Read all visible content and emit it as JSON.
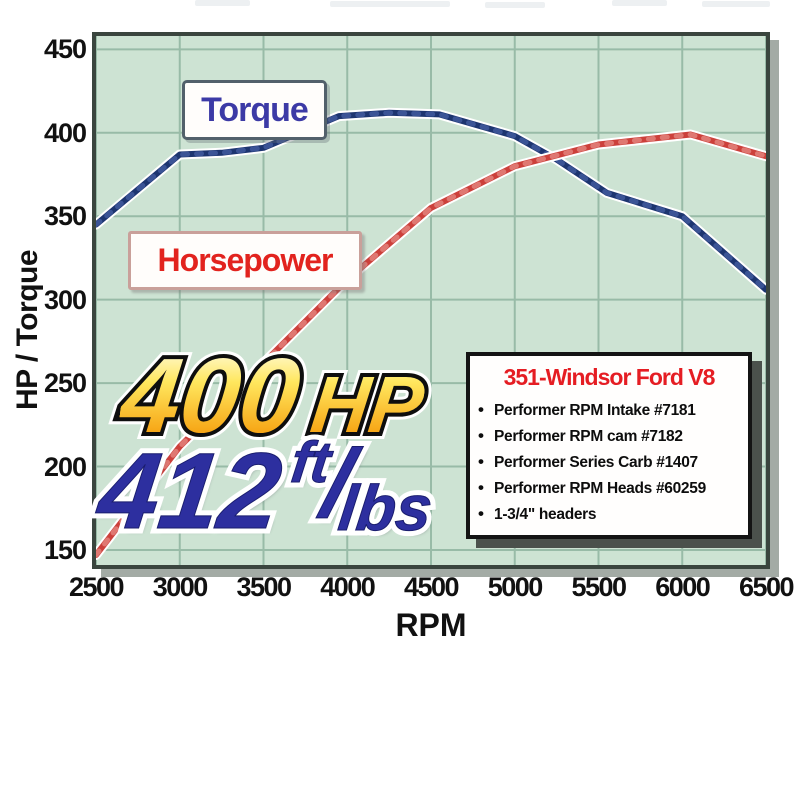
{
  "page": {
    "description": "Engine dyno chart for 351-Windsor Ford V8 showing horsepower and torque versus RPM"
  },
  "axis": {
    "y_title": "HP / Torque",
    "x_title": "RPM",
    "y_ticks": [
      450,
      400,
      350,
      300,
      250,
      200,
      150
    ],
    "x_ticks": [
      2500,
      3000,
      3500,
      4000,
      4500,
      5000,
      5500,
      6000,
      6500
    ]
  },
  "chart_data": {
    "type": "line",
    "title": "",
    "xlabel": "RPM",
    "ylabel": "HP / Torque",
    "xlim": [
      2500,
      6500
    ],
    "ylim": [
      141,
      458
    ],
    "grid": true,
    "background": "#cde3d3",
    "grid_color": "#98bba7",
    "frame_color": "#3a453e",
    "x": [
      2500,
      3000,
      3500,
      4000,
      4500,
      5000,
      5500,
      6000,
      6500
    ],
    "series": [
      {
        "name": "Torque",
        "color": "#1d3570",
        "texture_color": "#41599c",
        "units": "ft/lbs",
        "peak_label": "412 ft/lbs",
        "values_at_ticks": [
          345,
          387,
          391,
          410,
          411,
          398,
          364,
          350,
          306
        ],
        "points": [
          [
            2500,
            345
          ],
          [
            3000,
            387
          ],
          [
            3250,
            388
          ],
          [
            3500,
            391
          ],
          [
            3950,
            410
          ],
          [
            4250,
            412
          ],
          [
            4550,
            411
          ],
          [
            5000,
            398
          ],
          [
            5250,
            384
          ],
          [
            5550,
            364
          ],
          [
            6000,
            350
          ],
          [
            6500,
            306
          ]
        ]
      },
      {
        "name": "Horsepower",
        "color": "#cc403b",
        "texture_color": "#e2837c",
        "units": "HP",
        "peak_label": "400 HP",
        "values_at_ticks": [
          147,
          212,
          262,
          312,
          355,
          380,
          393,
          399,
          386
        ],
        "points": [
          [
            2500,
            147
          ],
          [
            3000,
            212
          ],
          [
            3500,
            262
          ],
          [
            4000,
            312
          ],
          [
            4500,
            355
          ],
          [
            5000,
            380
          ],
          [
            5500,
            393
          ],
          [
            6050,
            399
          ],
          [
            6500,
            386
          ]
        ]
      }
    ],
    "legend_position": "labels-on-plot"
  },
  "labels": {
    "torque": "Torque",
    "horsepower": "Horsepower"
  },
  "callouts": {
    "hp_value": "400",
    "hp_unit": "HP",
    "tq_value": "412",
    "tq_unit_top": "ft",
    "tq_slash": "/",
    "tq_unit_bottom": "lbs"
  },
  "spec_box": {
    "title": "351-Windsor Ford V8",
    "title_color": "#e51d23",
    "items": [
      "Performer RPM Intake #7181",
      "Performer RPM cam #7182",
      "Performer Series Carb #1407",
      "Performer RPM Heads #60259",
      "1-3/4\" headers"
    ]
  },
  "colors": {
    "torque_curve": "#1d3570",
    "horsepower_curve": "#cc403b",
    "torque_label_text": "#3c3aa6",
    "horsepower_label_text": "#e2231e",
    "callout_gold": "#f7a818",
    "callout_blue": "#2d2f9f",
    "plot_background": "#cde3d3"
  }
}
